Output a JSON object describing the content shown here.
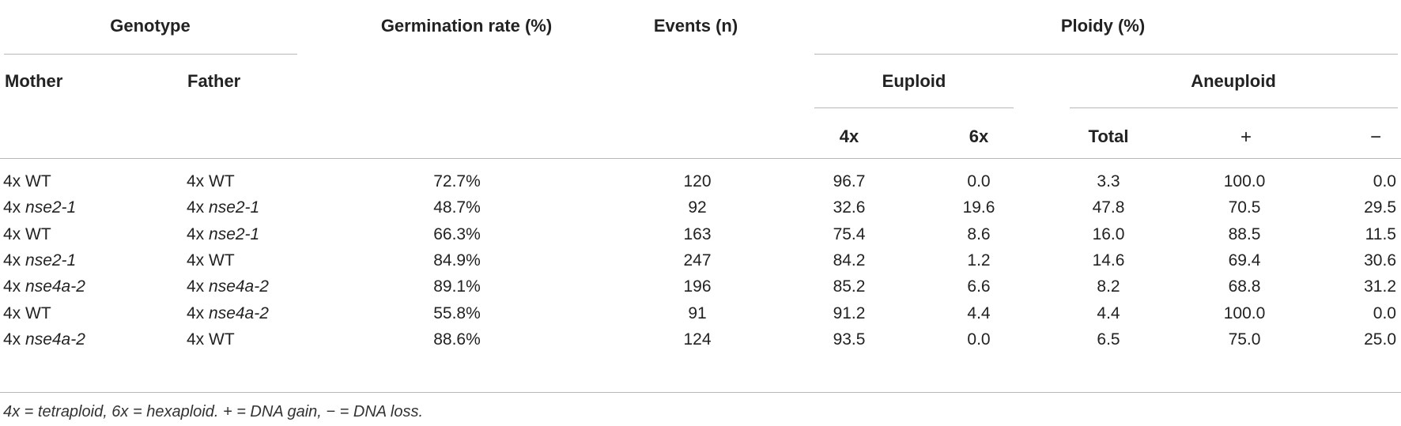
{
  "headers": {
    "genotype": "Genotype",
    "germination": "Germination rate (%)",
    "events": "Events (n)",
    "ploidy": "Ploidy (%)",
    "mother": "Mother",
    "father": "Father",
    "euploid": "Euploid",
    "aneuploid": "Aneuploid",
    "tetra": "4x",
    "hexa": "6x",
    "total": "Total",
    "plus": "+",
    "minus": "−"
  },
  "rows": [
    {
      "m_pre": "4x WT",
      "m_it": "",
      "f_pre": "4x WT",
      "f_it": "",
      "germ": "72.7%",
      "events": "120",
      "x4": "96.7",
      "x6": "0.0",
      "total": "3.3",
      "plus": "100.0",
      "minus": "0.0"
    },
    {
      "m_pre": "4x ",
      "m_it": "nse2-1",
      "f_pre": "4x ",
      "f_it": "nse2-1",
      "germ": "48.7%",
      "events": "92",
      "x4": "32.6",
      "x6": "19.6",
      "total": "47.8",
      "plus": "70.5",
      "minus": "29.5"
    },
    {
      "m_pre": "4x WT",
      "m_it": "",
      "f_pre": "4x ",
      "f_it": "nse2-1",
      "germ": "66.3%",
      "events": "163",
      "x4": "75.4",
      "x6": "8.6",
      "total": "16.0",
      "plus": "88.5",
      "minus": "11.5"
    },
    {
      "m_pre": "4x ",
      "m_it": "nse2-1",
      "f_pre": "4x WT",
      "f_it": "",
      "germ": "84.9%",
      "events": "247",
      "x4": "84.2",
      "x6": "1.2",
      "total": "14.6",
      "plus": "69.4",
      "minus": "30.6"
    },
    {
      "m_pre": "4x ",
      "m_it": "nse4a-2",
      "f_pre": "4x ",
      "f_it": "nse4a-2",
      "germ": "89.1%",
      "events": "196",
      "x4": "85.2",
      "x6": "6.6",
      "total": "8.2",
      "plus": "68.8",
      "minus": "31.2"
    },
    {
      "m_pre": "4x WT",
      "m_it": "",
      "f_pre": "4x ",
      "f_it": "nse4a-2",
      "germ": "55.8%",
      "events": "91",
      "x4": "91.2",
      "x6": "4.4",
      "total": "4.4",
      "plus": "100.0",
      "minus": "0.0"
    },
    {
      "m_pre": "4x ",
      "m_it": "nse4a-2",
      "f_pre": "4x WT",
      "f_it": "",
      "germ": "88.6%",
      "events": "124",
      "x4": "93.5",
      "x6": "0.0",
      "total": "6.5",
      "plus": "75.0",
      "minus": "25.0"
    }
  ],
  "footnote": "4x = tetraploid, 6x = hexaploid. + = DNA gain, − = DNA loss."
}
